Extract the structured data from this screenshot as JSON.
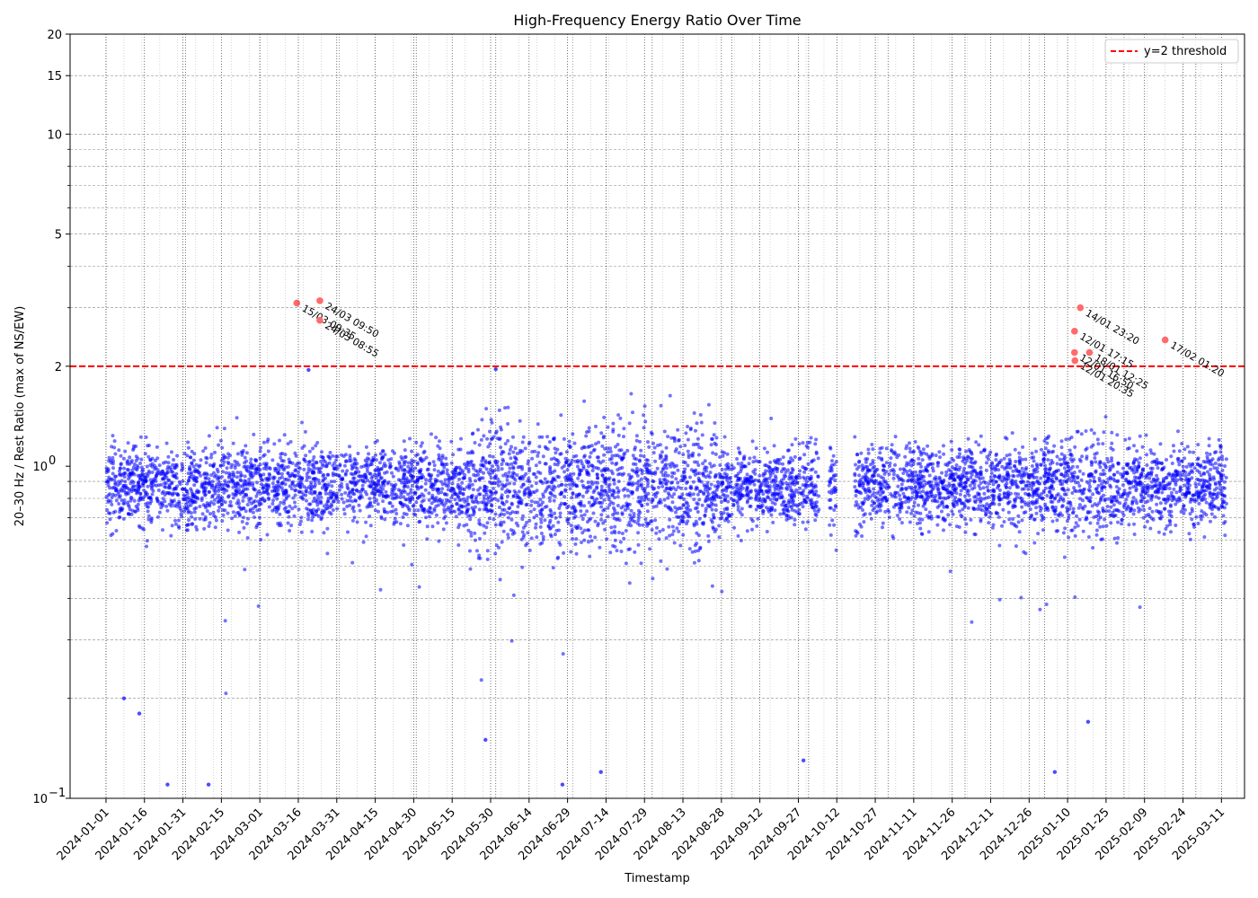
{
  "chart_data": {
    "type": "scatter",
    "title": "High-Frequency Energy Ratio Over Time",
    "xlabel": "Timestamp",
    "ylabel": "20–30 Hz / Rest Ratio (max of NS/EW)",
    "y_scale": "log",
    "xlim": [
      "2023-12-18",
      "2025-03-20"
    ],
    "ylim": [
      0.1,
      20
    ],
    "x_ticks": [
      "2024-01-01",
      "2024-01-16",
      "2024-01-31",
      "2024-02-15",
      "2024-03-01",
      "2024-03-16",
      "2024-03-31",
      "2024-04-15",
      "2024-04-30",
      "2024-05-15",
      "2024-05-30",
      "2024-06-14",
      "2024-06-29",
      "2024-07-14",
      "2024-07-29",
      "2024-08-13",
      "2024-08-28",
      "2024-09-12",
      "2024-09-27",
      "2024-10-12",
      "2024-10-27",
      "2024-11-11",
      "2024-11-26",
      "2024-12-11",
      "2024-12-26",
      "2025-01-10",
      "2025-01-25",
      "2025-02-09",
      "2025-02-24",
      "2025-03-11"
    ],
    "y_ticks": [
      {
        "value": 0.1,
        "label": "10",
        "exp": "−1"
      },
      {
        "value": 1,
        "label": "10",
        "exp": "0"
      },
      {
        "value": 2,
        "label": "2"
      },
      {
        "value": 5,
        "label": "5"
      },
      {
        "value": 10,
        "label": "10"
      },
      {
        "value": 15,
        "label": "15"
      },
      {
        "value": 20,
        "label": "20"
      }
    ],
    "grid": true,
    "threshold": {
      "y": 2,
      "label": "y=2 threshold",
      "color": "#ff0000",
      "style": "dashed"
    },
    "legend": {
      "position": "top-right",
      "entries": [
        "y=2 threshold"
      ]
    },
    "series": [
      {
        "type": "dense-scatter",
        "color": "#0000ff",
        "center": 0.87,
        "segments": [
          {
            "start": "2024-01-01",
            "end": "2024-10-04"
          },
          {
            "start": "2024-10-09",
            "end": "2024-10-11"
          },
          {
            "start": "2024-10-19",
            "end": "2025-03-12"
          }
        ],
        "notable_points": [
          [
            "2024-01-08",
            0.2
          ],
          [
            "2024-01-14",
            0.18
          ],
          [
            "2024-01-25",
            0.11
          ],
          [
            "2024-02-10",
            0.11
          ],
          [
            "2024-05-28",
            0.15
          ],
          [
            "2024-06-27",
            0.11
          ],
          [
            "2024-07-12",
            0.12
          ],
          [
            "2024-09-29",
            0.13
          ],
          [
            "2025-01-05",
            0.12
          ],
          [
            "2025-01-18",
            0.17
          ],
          [
            "2024-03-20",
            1.95
          ],
          [
            "2024-06-01",
            1.96
          ]
        ]
      },
      {
        "type": "highlight",
        "color": "#ff6b6b",
        "points": [
          {
            "x": "2024-03-15 09:35",
            "y": 3.1,
            "label": "15/03 09:35"
          },
          {
            "x": "2024-03-24 09:50",
            "y": 3.15,
            "label": "24/03 09:50"
          },
          {
            "x": "2024-03-24 08:55",
            "y": 2.75,
            "label": "24/03 08:55"
          },
          {
            "x": "2025-01-14 23:20",
            "y": 3.0,
            "label": "14/01 23:20"
          },
          {
            "x": "2025-01-12 17:15",
            "y": 2.55,
            "label": "12/01 17:15"
          },
          {
            "x": "2025-01-18 12:25",
            "y": 2.2,
            "label": "18/01 12:25"
          },
          {
            "x": "2025-01-12 16:50",
            "y": 2.2,
            "label": "12/01 16:50"
          },
          {
            "x": "2025-01-12 20:35",
            "y": 2.08,
            "label": "12/01 20:35"
          },
          {
            "x": "2025-02-17 01:20",
            "y": 2.4,
            "label": "17/02 01:20"
          }
        ]
      }
    ]
  }
}
